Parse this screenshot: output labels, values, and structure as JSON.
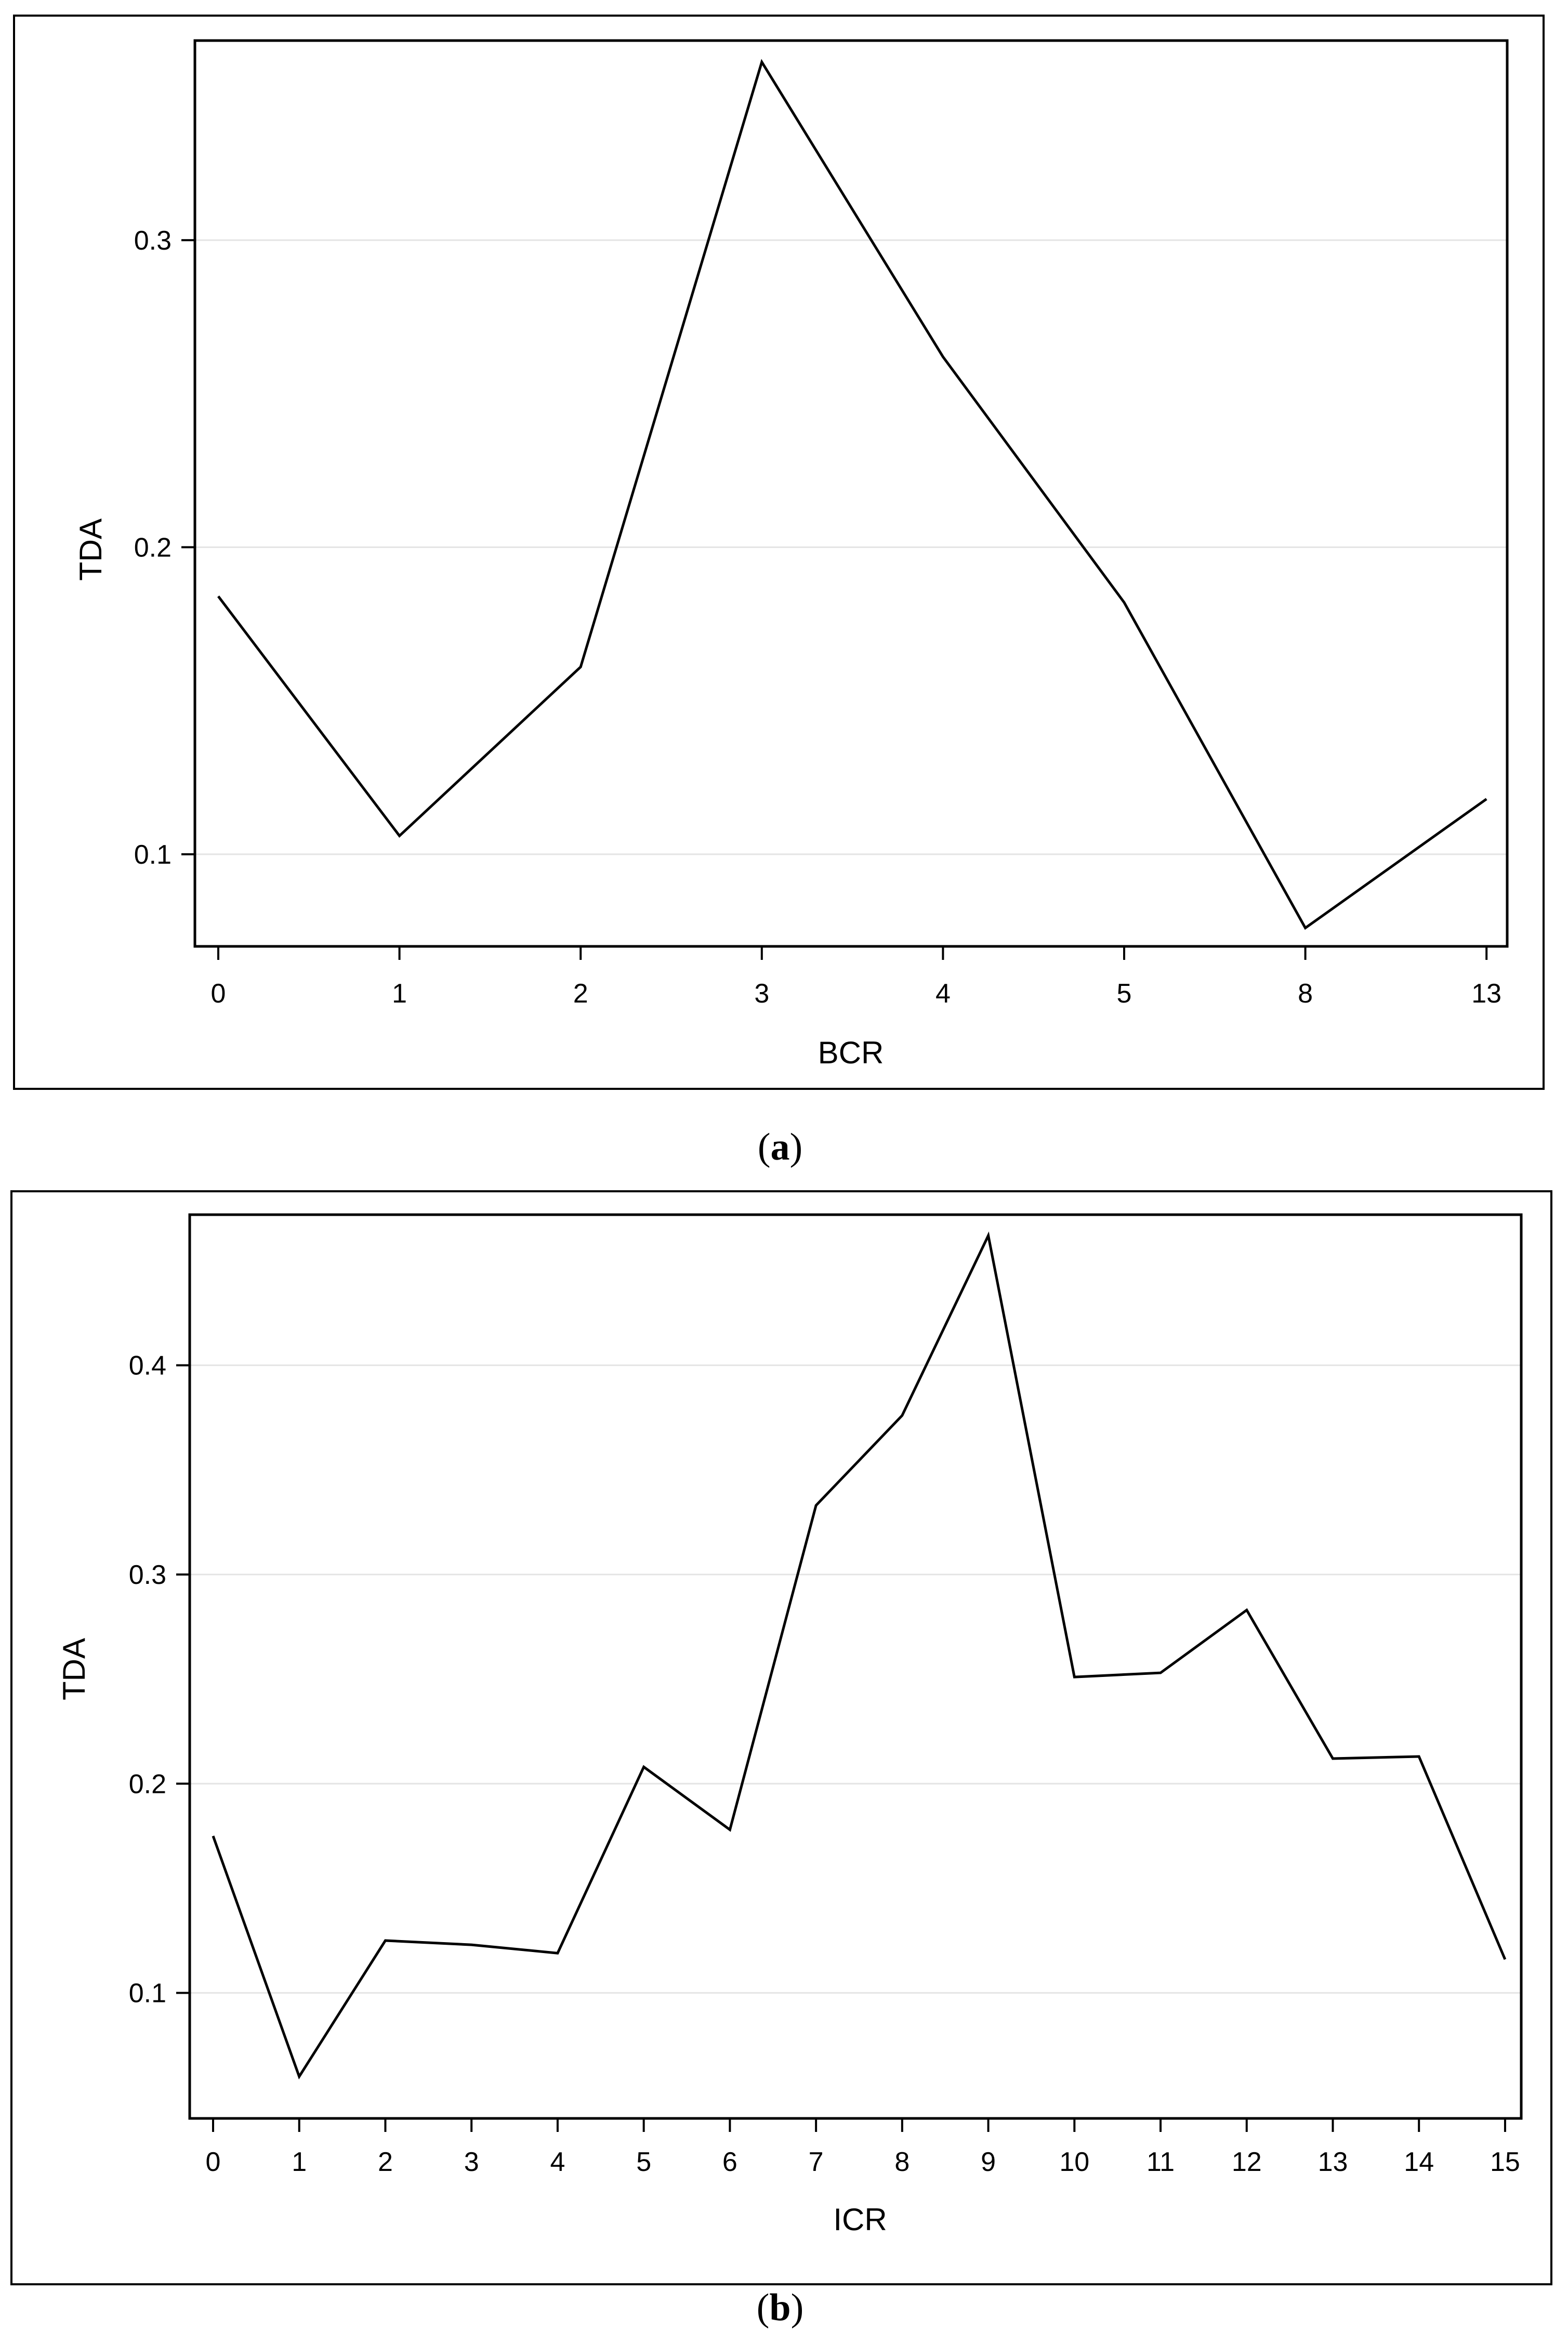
{
  "chart_data": [
    {
      "type": "line",
      "caption_letter": "a",
      "xlabel": "BCR",
      "ylabel": "TDA",
      "categories": [
        "0",
        "1",
        "2",
        "3",
        "4",
        "5",
        "8",
        "13"
      ],
      "values": [
        0.184,
        0.106,
        0.161,
        0.358,
        0.262,
        0.182,
        0.076,
        0.118
      ],
      "ylim": [
        0.07,
        0.365
      ],
      "yticks": [
        0.1,
        0.2,
        0.3
      ],
      "ytick_labels": [
        "0.1",
        "0.2",
        "0.3"
      ],
      "grid": "horizontal",
      "color": "#000000"
    },
    {
      "type": "line",
      "caption_letter": "b",
      "xlabel": "ICR",
      "ylabel": "TDA",
      "categories": [
        "0",
        "1",
        "2",
        "3",
        "4",
        "5",
        "6",
        "7",
        "8",
        "9",
        "10",
        "11",
        "12",
        "13",
        "14",
        "15"
      ],
      "values": [
        0.175,
        0.06,
        0.125,
        0.123,
        0.119,
        0.208,
        0.178,
        0.333,
        0.376,
        0.462,
        0.251,
        0.253,
        0.283,
        0.212,
        0.213,
        0.116
      ],
      "ylim": [
        0.04,
        0.472
      ],
      "yticks": [
        0.1,
        0.2,
        0.3,
        0.4
      ],
      "ytick_labels": [
        "0.1",
        "0.2",
        "0.3",
        "0.4"
      ],
      "grid": "horizontal",
      "color": "#000000"
    }
  ]
}
